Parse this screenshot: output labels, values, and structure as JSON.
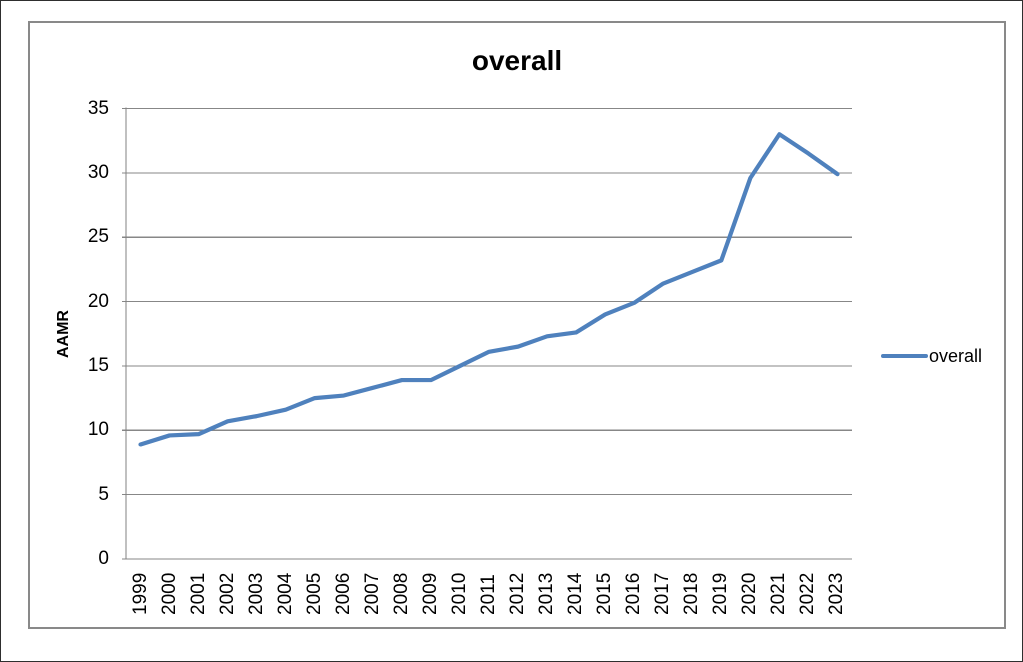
{
  "chart_data": {
    "type": "line",
    "title": "overall",
    "xlabel": "",
    "ylabel": "AAMR",
    "categories": [
      "1999",
      "2000",
      "2001",
      "2002",
      "2003",
      "2004",
      "2005",
      "2006",
      "2007",
      "2008",
      "2009",
      "2010",
      "2011",
      "2012",
      "2013",
      "2014",
      "2015",
      "2016",
      "2017",
      "2018",
      "2019",
      "2020",
      "2021",
      "2022",
      "2023"
    ],
    "series": [
      {
        "name": "overall",
        "color": "#4F81BD",
        "values": [
          8.9,
          9.6,
          9.7,
          10.7,
          11.1,
          11.6,
          12.5,
          12.7,
          13.3,
          13.9,
          13.9,
          15.0,
          16.1,
          16.5,
          17.3,
          17.6,
          19.0,
          19.9,
          21.4,
          22.3,
          23.2,
          29.6,
          33.0,
          31.5,
          29.9
        ]
      }
    ],
    "ylim": [
      0,
      35
    ],
    "yticks": [
      0,
      5,
      10,
      15,
      20,
      25,
      30,
      35
    ],
    "grid": "horizontal-major",
    "legend_position": "right",
    "x_tick_rotation": 90
  },
  "colors": {
    "accent": "#4F81BD",
    "gridline": "#878787",
    "axis": "#808080",
    "frame_border": "#898989",
    "text": "#000000"
  }
}
